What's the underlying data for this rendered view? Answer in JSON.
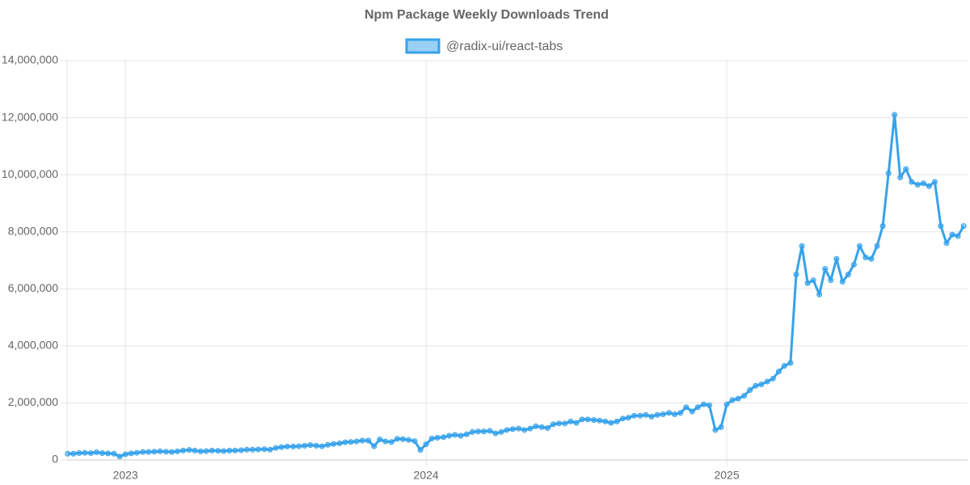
{
  "chart_data": {
    "type": "line",
    "title": "Npm Package Weekly Downloads Trend",
    "x": [
      2022.808,
      2022.827,
      2022.846,
      2022.865,
      2022.885,
      2022.904,
      2022.923,
      2022.942,
      2022.962,
      2022.981,
      2023,
      2023.019,
      2023.038,
      2023.058,
      2023.077,
      2023.096,
      2023.115,
      2023.135,
      2023.154,
      2023.173,
      2023.192,
      2023.212,
      2023.231,
      2023.25,
      2023.269,
      2023.288,
      2023.308,
      2023.327,
      2023.346,
      2023.365,
      2023.385,
      2023.404,
      2023.423,
      2023.442,
      2023.462,
      2023.481,
      2023.5,
      2023.519,
      2023.538,
      2023.558,
      2023.577,
      2023.596,
      2023.615,
      2023.635,
      2023.654,
      2023.673,
      2023.692,
      2023.712,
      2023.731,
      2023.75,
      2023.769,
      2023.788,
      2023.808,
      2023.827,
      2023.846,
      2023.865,
      2023.885,
      2023.904,
      2023.923,
      2023.942,
      2023.962,
      2023.981,
      2024,
      2024.019,
      2024.038,
      2024.058,
      2024.077,
      2024.096,
      2024.115,
      2024.135,
      2024.154,
      2024.173,
      2024.192,
      2024.212,
      2024.231,
      2024.25,
      2024.269,
      2024.288,
      2024.308,
      2024.327,
      2024.346,
      2024.365,
      2024.385,
      2024.404,
      2024.423,
      2024.442,
      2024.462,
      2024.481,
      2024.5,
      2024.519,
      2024.538,
      2024.558,
      2024.577,
      2024.596,
      2024.615,
      2024.635,
      2024.654,
      2024.673,
      2024.692,
      2024.712,
      2024.731,
      2024.75,
      2024.769,
      2024.788,
      2024.808,
      2024.827,
      2024.846,
      2024.865,
      2024.885,
      2024.904,
      2024.923,
      2024.942,
      2024.962,
      2024.981,
      2025,
      2025.019,
      2025.038,
      2025.058,
      2025.077,
      2025.096,
      2025.115,
      2025.135,
      2025.154,
      2025.173,
      2025.192,
      2025.212,
      2025.231,
      2025.25,
      2025.269,
      2025.288,
      2025.308,
      2025.327,
      2025.346,
      2025.365,
      2025.385,
      2025.404,
      2025.423,
      2025.442,
      2025.462,
      2025.481,
      2025.5,
      2025.519,
      2025.538,
      2025.558,
      2025.577,
      2025.596,
      2025.615,
      2025.635,
      2025.654,
      2025.673,
      2025.692,
      2025.712,
      2025.731,
      2025.75,
      2025.769,
      2025.788
    ],
    "series": [
      {
        "name": "@radix-ui/react-tabs",
        "color": "#36a2eb",
        "fill": "rgba(54,162,235,0.5)",
        "values": [
          220000,
          220000,
          240000,
          250000,
          240000,
          270000,
          240000,
          230000,
          220000,
          120000,
          200000,
          230000,
          250000,
          280000,
          280000,
          290000,
          300000,
          290000,
          280000,
          300000,
          330000,
          350000,
          330000,
          300000,
          310000,
          330000,
          320000,
          310000,
          330000,
          330000,
          340000,
          360000,
          360000,
          370000,
          380000,
          360000,
          420000,
          450000,
          470000,
          470000,
          480000,
          500000,
          520000,
          500000,
          480000,
          530000,
          560000,
          580000,
          620000,
          630000,
          650000,
          680000,
          680000,
          480000,
          720000,
          650000,
          630000,
          740000,
          730000,
          700000,
          660000,
          350000,
          550000,
          750000,
          780000,
          800000,
          850000,
          880000,
          850000,
          900000,
          980000,
          1000000,
          1000000,
          1020000,
          930000,
          980000,
          1050000,
          1080000,
          1100000,
          1050000,
          1100000,
          1180000,
          1150000,
          1120000,
          1250000,
          1280000,
          1280000,
          1350000,
          1300000,
          1420000,
          1420000,
          1400000,
          1380000,
          1350000,
          1300000,
          1350000,
          1450000,
          1480000,
          1550000,
          1550000,
          1580000,
          1520000,
          1580000,
          1600000,
          1650000,
          1600000,
          1650000,
          1850000,
          1700000,
          1850000,
          1950000,
          1920000,
          1050000,
          1150000,
          1950000,
          2100000,
          2150000,
          2250000,
          2450000,
          2600000,
          2650000,
          2750000,
          2850000,
          3100000,
          3300000,
          3400000,
          6500000,
          7500000,
          6200000,
          6300000,
          5800000,
          6700000,
          6300000,
          7050000,
          6250000,
          6500000,
          6850000,
          7500000,
          7100000,
          7050000,
          7500000,
          8200000,
          10050000,
          12100000,
          9900000,
          10200000,
          9750000,
          9650000,
          9700000,
          9600000,
          9750000,
          8200000,
          7600000,
          7900000,
          7850000,
          8200000
        ]
      }
    ],
    "xlim": [
      2022.806,
      2025.801
    ],
    "xticks": [
      2023,
      2024,
      2025
    ],
    "ylim": [
      0,
      14000000
    ],
    "yticks": [
      0,
      {
        "value": 2000000,
        "label": "2,000,000"
      },
      {
        "value": 4000000,
        "label": "4,000,000"
      },
      {
        "value": 6000000,
        "label": "6,000,000"
      },
      {
        "value": 8000000,
        "label": "8,000,000"
      },
      {
        "value": 10000000,
        "label": "10,000,000"
      },
      {
        "value": 12000000,
        "label": "12,000,000"
      },
      {
        "value": 14000000,
        "label": "14,000,000"
      }
    ],
    "grid": true,
    "legend": "top"
  }
}
